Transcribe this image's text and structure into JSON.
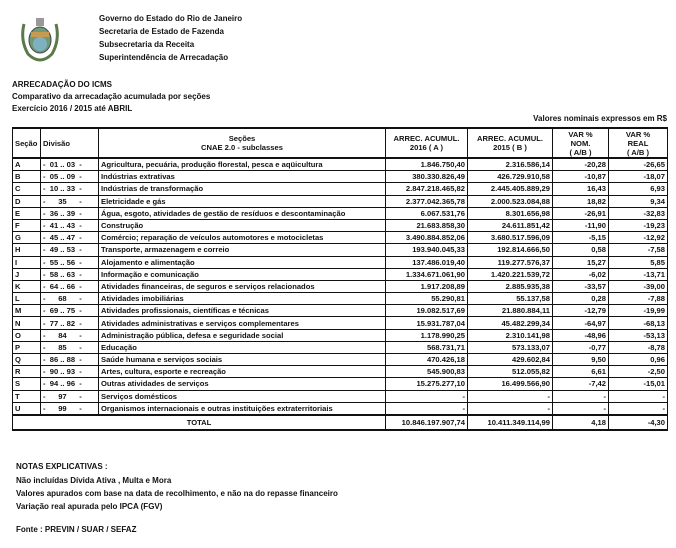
{
  "header": {
    "lines": [
      "Governo do Estado do Rio de Janeiro",
      "Secretaria de Estado de Fazenda",
      "Subsecretaria da Receita",
      "Superintendência de Arrecadação"
    ]
  },
  "title": {
    "lines": [
      "ARRECADAÇÃO DO ICMS",
      "Comparativo da arrecadação acumulada por seções",
      "Exercício 2016 / 2015 até ABRIL"
    ]
  },
  "units_note": "Valores nominais expressos em R$",
  "table": {
    "columns": [
      "Seção",
      "Divisão",
      "Seções\nCNAE 2.0 - subclasses",
      "ARREC. ACUMUL.\n2016 ( A )",
      "ARREC. ACUMUL.\n2015 ( B )",
      "VAR %\nNOM.\n( A/B )",
      "VAR %\nREAL\n( A/B )"
    ],
    "rows": [
      [
        "A",
        "-  01 .. 03  -",
        "Agricultura, pecuária, produção florestal, pesca e aqüicultura",
        "1.846.750,40",
        "2.316.586,14",
        "-20,28",
        "-26,65"
      ],
      [
        "B",
        "-  05 .. 09  -",
        "Indústrias extrativas",
        "380.330.826,49",
        "426.729.910,58",
        "-10,87",
        "-18,07"
      ],
      [
        "C",
        "-  10 .. 33  -",
        "Indústrias de transformação",
        "2.847.218.465,82",
        "2.445.405.889,29",
        "16,43",
        "6,93"
      ],
      [
        "D",
        "-      35      -",
        "Eletricidade e gás",
        "2.377.042.365,78",
        "2.000.523.084,88",
        "18,82",
        "9,34"
      ],
      [
        "E",
        "-  36 .. 39  -",
        "Água, esgoto, atividades de gestão de resíduos e descontaminação",
        "6.067.531,76",
        "8.301.656,98",
        "-26,91",
        "-32,83"
      ],
      [
        "F",
        "-  41 .. 43  -",
        "Construção",
        "21.683.858,30",
        "24.611.851,42",
        "-11,90",
        "-19,23"
      ],
      [
        "G",
        "-  45 .. 47  -",
        "Comércio; reparação de veículos automotores e motocicletas",
        "3.490.884.852,06",
        "3.680.517.596,09",
        "-5,15",
        "-12,92"
      ],
      [
        "H",
        "-  49 .. 53  -",
        "Transporte, armazenagem e correio",
        "193.940.045,33",
        "192.814.666,50",
        "0,58",
        "-7,58"
      ],
      [
        "I",
        "-  55 .. 56  -",
        "Alojamento e alimentação",
        "137.486.019,40",
        "119.277.576,37",
        "15,27",
        "5,85"
      ],
      [
        "J",
        "-  58 .. 63  -",
        "Informação e comunicação",
        "1.334.671.061,90",
        "1.420.221.539,72",
        "-6,02",
        "-13,71"
      ],
      [
        "K",
        "-  64 .. 66  -",
        "Atividades financeiras, de seguros e serviços relacionados",
        "1.917.208,89",
        "2.885.935,38",
        "-33,57",
        "-39,00"
      ],
      [
        "L",
        "-      68      -",
        "Atividades imobiliárias",
        "55.290,81",
        "55.137,58",
        "0,28",
        "-7,88"
      ],
      [
        "M",
        "-  69 .. 75  -",
        "Atividades profissionais, científicas e técnicas",
        "19.082.517,69",
        "21.880.884,11",
        "-12,79",
        "-19,99"
      ],
      [
        "N",
        "-  77 .. 82  -",
        "Atividades administrativas e serviços complementares",
        "15.931.787,04",
        "45.482.299,34",
        "-64,97",
        "-68,13"
      ],
      [
        "O",
        "-      84      -",
        "Administração pública, defesa e seguridade social",
        "1.178.990,25",
        "2.310.141,98",
        "-48,96",
        "-53,13"
      ],
      [
        "P",
        "-      85      -",
        "Educação",
        "568.731,71",
        "573.133,07",
        "-0,77",
        "-8,78"
      ],
      [
        "Q",
        "-  86 .. 88  -",
        "Saúde humana e serviços sociais",
        "470.426,18",
        "429.602,84",
        "9,50",
        "0,96"
      ],
      [
        "R",
        "-  90 .. 93  -",
        "Artes, cultura, esporte e recreação",
        "545.900,83",
        "512.055,82",
        "6,61",
        "-2,50"
      ],
      [
        "S",
        "-  94 .. 96  -",
        "Outras atividades de serviços",
        "15.275.277,10",
        "16.499.566,90",
        "-7,42",
        "-15,01"
      ],
      [
        "T",
        "-      97      -",
        "Serviços domésticos",
        "-",
        "-",
        "-",
        "-"
      ],
      [
        "U",
        "-      99      -",
        "Organismos internacionais e outras instituições extraterritoriais",
        "-",
        "-",
        "-",
        "-"
      ]
    ],
    "total": [
      "TOTAL",
      "10.846.197.907,74",
      "10.411.349.114,99",
      "4,18",
      "-4,30"
    ]
  },
  "notes": {
    "heading": "NOTAS EXPLICATIVAS :",
    "lines": [
      "Não incluídas Dívida Ativa , Multa e Mora",
      "Valores  apurados com base na data de recolhimento, e não na do repasse financeiro",
      "Variação real apurada pelo IPCA (FGV)"
    ],
    "source": "Fonte : PREVIN / SUAR / SEFAZ"
  }
}
